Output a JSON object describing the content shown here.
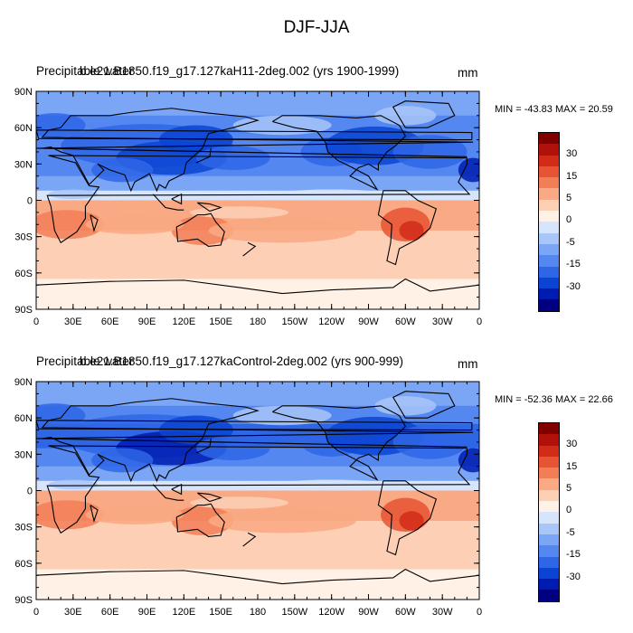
{
  "figure_title": "DJF-JJA",
  "colors": {
    "levels": [
      "#000080",
      "#001cb0",
      "#0b44d2",
      "#2f66e6",
      "#5587f0",
      "#7ba5f5",
      "#a9c6f9",
      "#d6e5fc",
      "#fff1e5",
      "#fdd0b6",
      "#f9a983",
      "#f27e58",
      "#e75433",
      "#d22c19",
      "#b0120b",
      "#800000"
    ]
  },
  "panels": [
    {
      "title_a": "Precipitable water",
      "title_b": "b.e21.B1850.f19_g17.127kaH11-2deg.002 (yrs 1900-1999)",
      "units": "mm",
      "minmax": "MIN = -43.83 MAX =  20.59"
    },
    {
      "title_a": "Precipitable water",
      "title_b": "b.e21.B1850.f19_g17.127kaControl-2deg.002 (yrs 900-999)",
      "units": "mm",
      "minmax": "MIN = -52.36 MAX =  22.66"
    }
  ],
  "colorbar_labels": [
    "30",
    "15",
    "5",
    "0",
    "-5",
    "-15",
    "-30"
  ],
  "lat_labels": [
    "90N",
    "60N",
    "30N",
    "0",
    "30S",
    "60S",
    "90S"
  ],
  "lon_labels": [
    "0",
    "30E",
    "60E",
    "90E",
    "120E",
    "150E",
    "180",
    "150W",
    "120W",
    "90W",
    "60W",
    "30W",
    "0"
  ]
}
